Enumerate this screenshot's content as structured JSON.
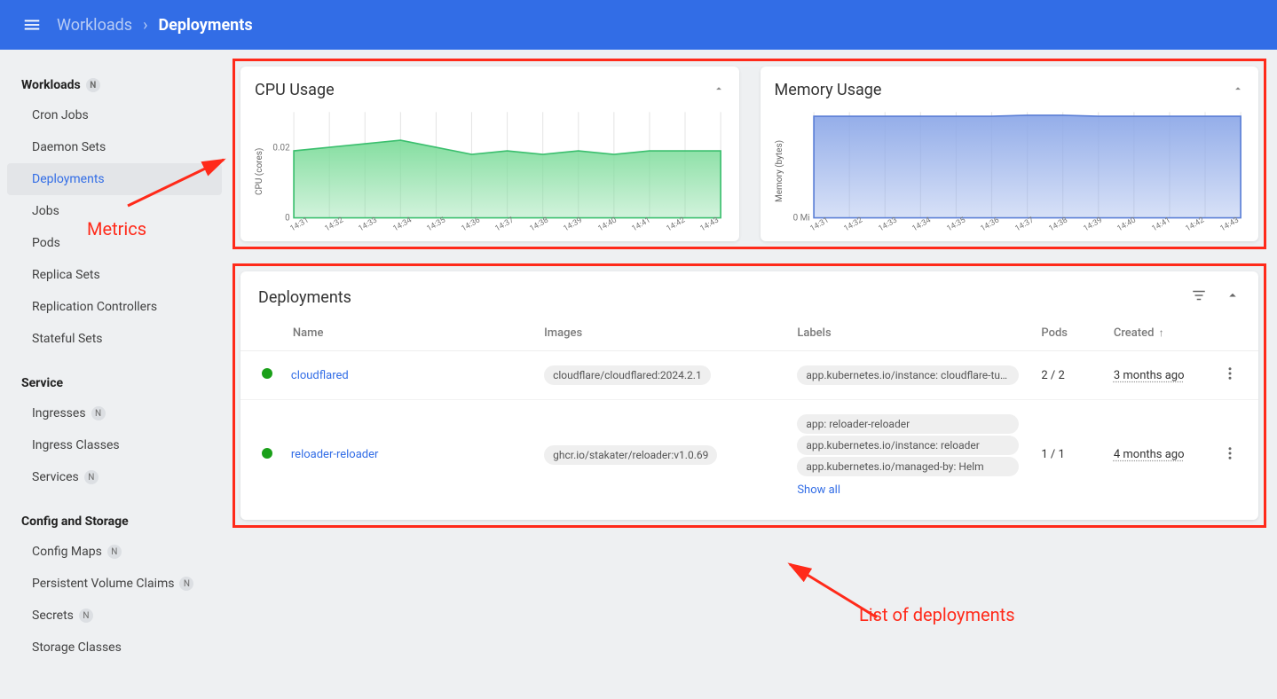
{
  "header": {
    "breadcrumb_root": "Workloads",
    "breadcrumb_current": "Deployments"
  },
  "sidebar": {
    "sections": [
      {
        "heading": "Workloads",
        "heading_badge": "N",
        "items": [
          {
            "label": "Cron Jobs",
            "active": false
          },
          {
            "label": "Daemon Sets",
            "active": false
          },
          {
            "label": "Deployments",
            "active": true
          },
          {
            "label": "Jobs",
            "active": false
          },
          {
            "label": "Pods",
            "active": false
          },
          {
            "label": "Replica Sets",
            "active": false
          },
          {
            "label": "Replication Controllers",
            "active": false
          },
          {
            "label": "Stateful Sets",
            "active": false
          }
        ]
      },
      {
        "heading": "Service",
        "heading_badge": null,
        "items": [
          {
            "label": "Ingresses",
            "badge": "N"
          },
          {
            "label": "Ingress Classes"
          },
          {
            "label": "Services",
            "badge": "N"
          }
        ]
      },
      {
        "heading": "Config and Storage",
        "heading_badge": null,
        "items": [
          {
            "label": "Config Maps",
            "badge": "N"
          },
          {
            "label": "Persistent Volume Claims",
            "badge": "N"
          },
          {
            "label": "Secrets",
            "badge": "N"
          },
          {
            "label": "Storage Classes"
          }
        ]
      }
    ]
  },
  "charts": {
    "cpu": {
      "title": "CPU Usage",
      "y_label": "CPU (cores)",
      "type": "area",
      "fill_color": "#7edc9b",
      "stroke_color": "#3bbf6e",
      "background_color": "#ffffff",
      "grid_color": "#e6e6e6",
      "y_ticks": [
        "0",
        "0.02"
      ],
      "ylim": [
        0,
        0.03
      ],
      "x_ticks": [
        "14:31",
        "14:32",
        "14:33",
        "14:34",
        "14:35",
        "14:36",
        "14:37",
        "14:38",
        "14:39",
        "14:40",
        "14:41",
        "14:42",
        "14:43"
      ],
      "values": [
        0.019,
        0.02,
        0.021,
        0.022,
        0.02,
        0.018,
        0.019,
        0.018,
        0.019,
        0.018,
        0.019,
        0.019,
        0.019
      ]
    },
    "memory": {
      "title": "Memory Usage",
      "y_label": "Memory (bytes)",
      "type": "area",
      "fill_color": "#8ea9e8",
      "stroke_color": "#5b7fd6",
      "background_color": "#ffffff",
      "grid_color": "#e6e6e6",
      "y_ticks": [
        "0 Mi"
      ],
      "ylim": [
        0,
        1
      ],
      "x_ticks": [
        "14:31",
        "14:32",
        "14:33",
        "14:34",
        "14:35",
        "14:36",
        "14:37",
        "14:38",
        "14:39",
        "14:40",
        "14:41",
        "14:42",
        "14:43"
      ],
      "values": [
        0.96,
        0.96,
        0.96,
        0.96,
        0.96,
        0.96,
        0.97,
        0.97,
        0.96,
        0.96,
        0.96,
        0.96,
        0.96
      ]
    }
  },
  "deployments": {
    "title": "Deployments",
    "columns": {
      "name": "Name",
      "images": "Images",
      "labels": "Labels",
      "pods": "Pods",
      "created": "Created"
    },
    "sort_indicator": "↑",
    "show_all": "Show all",
    "rows": [
      {
        "status_color": "#1aa019",
        "name": "cloudflared",
        "image": "cloudflare/cloudflared:2024.2.1",
        "labels": [
          "app.kubernetes.io/instance: cloudflare-tunnel-agent"
        ],
        "pods": "2 / 2",
        "created": "3 months ago"
      },
      {
        "status_color": "#1aa019",
        "name": "reloader-reloader",
        "image": "ghcr.io/stakater/reloader:v1.0.69",
        "labels": [
          "app: reloader-reloader",
          "app.kubernetes.io/instance: reloader",
          "app.kubernetes.io/managed-by: Helm"
        ],
        "show_all": true,
        "pods": "1 / 1",
        "created": "4 months ago"
      }
    ]
  },
  "annotations": {
    "metrics_label": "Metrics",
    "deployments_label": "List of deployments",
    "color": "#ff2a1a"
  }
}
